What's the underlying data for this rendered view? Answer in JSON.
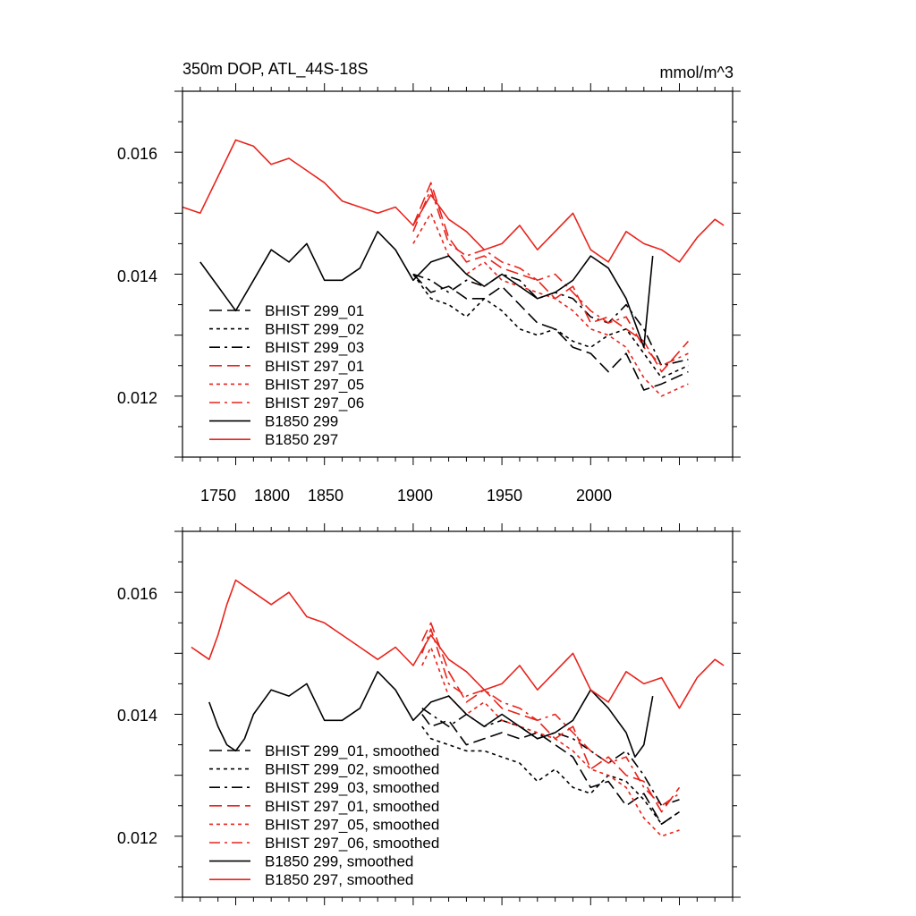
{
  "chart_data": [
    {
      "type": "line",
      "title": "350m DOP, ATL_44S-18S",
      "units": "mmol/m^3",
      "xlim": [
        1720,
        2030
      ],
      "ylim": [
        0.011,
        0.017
      ],
      "x_ticks": [
        "1750",
        "1800",
        "1850",
        "1900",
        "1950",
        "2000"
      ],
      "y_ticks": [
        "0.016",
        "0.014",
        "0.012"
      ],
      "legend": [
        "BHIST 299_01",
        "BHIST 299_02",
        "BHIST 299_03",
        "BHIST 297_01",
        "BHIST 297_05",
        "BHIST 297_06",
        "B1850 299",
        "B1850 297"
      ],
      "series": [
        {
          "name": "BHIST 299_01",
          "color": "#000000",
          "dash": "long",
          "x": [
            1850,
            1860,
            1870,
            1880,
            1890,
            1900,
            1910,
            1920,
            1930,
            1940,
            1950,
            1960,
            1970,
            1980,
            1990,
            2005
          ],
          "values": [
            0.014,
            0.0137,
            0.0138,
            0.0136,
            0.0136,
            0.0138,
            0.0135,
            0.0132,
            0.0131,
            0.0128,
            0.0127,
            0.0124,
            0.0127,
            0.0121,
            0.0122,
            0.0124
          ]
        },
        {
          "name": "BHIST 299_02",
          "color": "#000000",
          "dash": "short",
          "x": [
            1850,
            1860,
            1870,
            1880,
            1890,
            1900,
            1910,
            1920,
            1930,
            1940,
            1950,
            1960,
            1970,
            1980,
            1990,
            2005
          ],
          "values": [
            0.014,
            0.0136,
            0.0135,
            0.0133,
            0.0136,
            0.0134,
            0.0131,
            0.013,
            0.0131,
            0.0129,
            0.0128,
            0.013,
            0.0131,
            0.0127,
            0.0123,
            0.0125
          ]
        },
        {
          "name": "BHIST 299_03",
          "color": "#000000",
          "dash": "dashdot",
          "x": [
            1850,
            1860,
            1870,
            1880,
            1890,
            1900,
            1910,
            1920,
            1930,
            1940,
            1950,
            1960,
            1970,
            1980,
            1990,
            2005
          ],
          "values": [
            0.014,
            0.0139,
            0.0137,
            0.0139,
            0.0138,
            0.014,
            0.0139,
            0.0136,
            0.0137,
            0.0136,
            0.0133,
            0.0132,
            0.0135,
            0.0131,
            0.0125,
            0.0126
          ]
        },
        {
          "name": "BHIST 297_01",
          "color": "#e8231c",
          "dash": "long",
          "x": [
            1850,
            1860,
            1870,
            1880,
            1890,
            1900,
            1910,
            1920,
            1930,
            1940,
            1950,
            1960,
            1970,
            1980,
            1990,
            2005
          ],
          "values": [
            0.0148,
            0.0155,
            0.0146,
            0.0142,
            0.0143,
            0.0141,
            0.014,
            0.0139,
            0.0136,
            0.0138,
            0.0132,
            0.0133,
            0.0131,
            0.0129,
            0.0124,
            0.0129
          ]
        },
        {
          "name": "BHIST 297_05",
          "color": "#e8231c",
          "dash": "short",
          "x": [
            1850,
            1860,
            1870,
            1880,
            1890,
            1900,
            1910,
            1920,
            1930,
            1940,
            1950,
            1960,
            1970,
            1980,
            1990,
            2005
          ],
          "values": [
            0.0145,
            0.015,
            0.0143,
            0.014,
            0.0142,
            0.0139,
            0.0138,
            0.0137,
            0.0136,
            0.0134,
            0.0131,
            0.013,
            0.0128,
            0.0123,
            0.012,
            0.0122
          ]
        },
        {
          "name": "BHIST 297_06",
          "color": "#e8231c",
          "dash": "dashdot",
          "x": [
            1850,
            1860,
            1870,
            1880,
            1890,
            1900,
            1910,
            1920,
            1930,
            1940,
            1950,
            1960,
            1970,
            1980,
            1990,
            2005
          ],
          "values": [
            0.0147,
            0.0154,
            0.0145,
            0.0143,
            0.0144,
            0.0142,
            0.0141,
            0.0139,
            0.014,
            0.0137,
            0.0134,
            0.0132,
            0.0133,
            0.0128,
            0.0125,
            0.0127
          ]
        },
        {
          "name": "B1850 299",
          "color": "#000000",
          "dash": "solid",
          "x": [
            1730,
            1740,
            1750,
            1760,
            1770,
            1780,
            1790,
            1800,
            1810,
            1820,
            1830,
            1840,
            1850,
            1860,
            1870,
            1880,
            1890,
            1900,
            1910,
            1920,
            1930,
            1940,
            1950,
            1960,
            1970,
            1980,
            1985
          ],
          "values": [
            0.0142,
            0.0138,
            0.0134,
            0.0139,
            0.0144,
            0.0142,
            0.0145,
            0.0139,
            0.0139,
            0.0141,
            0.0147,
            0.0144,
            0.0139,
            0.0142,
            0.0143,
            0.014,
            0.0138,
            0.014,
            0.0138,
            0.0136,
            0.0137,
            0.0139,
            0.0143,
            0.0141,
            0.0136,
            0.0128,
            0.0143
          ]
        },
        {
          "name": "B1850 297",
          "color": "#e8231c",
          "dash": "solid",
          "x": [
            1720,
            1730,
            1740,
            1750,
            1760,
            1770,
            1780,
            1790,
            1800,
            1810,
            1820,
            1830,
            1840,
            1850,
            1860,
            1870,
            1880,
            1890,
            1900,
            1910,
            1920,
            1930,
            1940,
            1950,
            1960,
            1970,
            1980,
            1990,
            2000,
            2010,
            2020,
            2025
          ],
          "values": [
            0.0151,
            0.015,
            0.0156,
            0.0162,
            0.0161,
            0.0158,
            0.0159,
            0.0157,
            0.0155,
            0.0152,
            0.0151,
            0.015,
            0.0151,
            0.0148,
            0.0153,
            0.0149,
            0.0147,
            0.0144,
            0.0145,
            0.0148,
            0.0144,
            0.0147,
            0.015,
            0.0144,
            0.0142,
            0.0147,
            0.0145,
            0.0144,
            0.0142,
            0.0146,
            0.0149,
            0.0148
          ]
        }
      ]
    },
    {
      "type": "line",
      "title": "",
      "units": "",
      "xlim": [
        1720,
        2030
      ],
      "ylim": [
        0.011,
        0.017
      ],
      "x_ticks": [
        "1750",
        "1800",
        "1850",
        "1900",
        "1950",
        "2000"
      ],
      "y_ticks": [
        "0.016",
        "0.014",
        "0.012"
      ],
      "legend": [
        "BHIST 299_01, smoothed",
        "BHIST 299_02, smoothed",
        "BHIST 299_03, smoothed",
        "BHIST 297_01, smoothed",
        "BHIST 297_05, smoothed",
        "BHIST 297_06, smoothed",
        "B1850 299, smoothed",
        "B1850 297, smoothed"
      ],
      "series": [
        {
          "name": "BHIST 299_01, smoothed",
          "color": "#000000",
          "dash": "long",
          "x": [
            1855,
            1860,
            1870,
            1880,
            1890,
            1900,
            1910,
            1920,
            1930,
            1940,
            1950,
            1960,
            1970,
            1980,
            1990,
            2000
          ],
          "values": [
            0.014,
            0.0138,
            0.0139,
            0.0135,
            0.0136,
            0.0137,
            0.0136,
            0.0137,
            0.0135,
            0.0133,
            0.0128,
            0.0129,
            0.0125,
            0.0127,
            0.0122,
            0.0124
          ]
        },
        {
          "name": "BHIST 299_02, smoothed",
          "color": "#000000",
          "dash": "short",
          "x": [
            1855,
            1860,
            1870,
            1880,
            1890,
            1900,
            1910,
            1920,
            1930,
            1940,
            1950,
            1960,
            1970,
            1980,
            1990,
            2000
          ],
          "values": [
            0.0138,
            0.0136,
            0.0135,
            0.0134,
            0.0134,
            0.0133,
            0.0132,
            0.0129,
            0.0131,
            0.0128,
            0.0127,
            0.013,
            0.0129,
            0.0126,
            0.0122,
            0.0124
          ]
        },
        {
          "name": "BHIST 299_03, smoothed",
          "color": "#000000",
          "dash": "dashdot",
          "x": [
            1855,
            1860,
            1870,
            1880,
            1890,
            1900,
            1910,
            1920,
            1930,
            1940,
            1950,
            1960,
            1970,
            1980,
            1990,
            2000
          ],
          "values": [
            0.0141,
            0.014,
            0.0138,
            0.014,
            0.0138,
            0.0139,
            0.0138,
            0.0136,
            0.0137,
            0.0136,
            0.0134,
            0.0132,
            0.0134,
            0.013,
            0.0125,
            0.0126
          ]
        },
        {
          "name": "BHIST 297_01, smoothed",
          "color": "#e8231c",
          "dash": "long",
          "x": [
            1855,
            1860,
            1870,
            1880,
            1890,
            1900,
            1910,
            1920,
            1930,
            1940,
            1950,
            1960,
            1970,
            1980,
            1990,
            2000
          ],
          "values": [
            0.0152,
            0.0155,
            0.0147,
            0.0142,
            0.0144,
            0.0141,
            0.014,
            0.0139,
            0.0136,
            0.0138,
            0.0131,
            0.0133,
            0.013,
            0.0129,
            0.0124,
            0.0128
          ]
        },
        {
          "name": "BHIST 297_05, smoothed",
          "color": "#e8231c",
          "dash": "short",
          "x": [
            1855,
            1860,
            1870,
            1880,
            1890,
            1900,
            1910,
            1920,
            1930,
            1940,
            1950,
            1960,
            1970,
            1980,
            1990,
            2000
          ],
          "values": [
            0.0148,
            0.0151,
            0.0143,
            0.014,
            0.0142,
            0.0139,
            0.0138,
            0.0137,
            0.0136,
            0.0134,
            0.0131,
            0.013,
            0.0128,
            0.0123,
            0.012,
            0.0121
          ]
        },
        {
          "name": "BHIST 297_06, smoothed",
          "color": "#e8231c",
          "dash": "dashdot",
          "x": [
            1855,
            1860,
            1870,
            1880,
            1890,
            1900,
            1910,
            1920,
            1930,
            1940,
            1950,
            1960,
            1970,
            1980,
            1990,
            2000
          ],
          "values": [
            0.015,
            0.0154,
            0.0145,
            0.0143,
            0.0144,
            0.0142,
            0.0141,
            0.0139,
            0.014,
            0.0137,
            0.0134,
            0.0132,
            0.0133,
            0.0128,
            0.0125,
            0.0127
          ]
        },
        {
          "name": "B1850 299, smoothed",
          "color": "#000000",
          "dash": "solid",
          "x": [
            1735,
            1740,
            1745,
            1750,
            1755,
            1760,
            1770,
            1780,
            1790,
            1800,
            1810,
            1820,
            1830,
            1840,
            1850,
            1860,
            1870,
            1880,
            1890,
            1900,
            1910,
            1920,
            1930,
            1940,
            1950,
            1960,
            1970,
            1975,
            1980,
            1985
          ],
          "values": [
            0.0142,
            0.0138,
            0.0135,
            0.0134,
            0.0136,
            0.014,
            0.0144,
            0.0143,
            0.0145,
            0.0139,
            0.0139,
            0.0141,
            0.0147,
            0.0144,
            0.0139,
            0.0142,
            0.0143,
            0.014,
            0.0138,
            0.014,
            0.0138,
            0.0136,
            0.0137,
            0.0139,
            0.0144,
            0.0141,
            0.0137,
            0.0133,
            0.0135,
            0.0143
          ]
        },
        {
          "name": "B1850 297, smoothed",
          "color": "#e8231c",
          "dash": "solid",
          "x": [
            1725,
            1730,
            1735,
            1740,
            1745,
            1750,
            1760,
            1770,
            1780,
            1790,
            1800,
            1810,
            1820,
            1830,
            1840,
            1850,
            1860,
            1870,
            1880,
            1890,
            1900,
            1910,
            1920,
            1930,
            1940,
            1950,
            1960,
            1970,
            1980,
            1990,
            2000,
            2010,
            2020,
            2025
          ],
          "values": [
            0.0151,
            0.015,
            0.0149,
            0.0153,
            0.0158,
            0.0162,
            0.016,
            0.0158,
            0.016,
            0.0156,
            0.0155,
            0.0153,
            0.0151,
            0.0149,
            0.0151,
            0.0148,
            0.0153,
            0.0149,
            0.0147,
            0.0144,
            0.0145,
            0.0148,
            0.0144,
            0.0147,
            0.015,
            0.0144,
            0.0142,
            0.0147,
            0.0145,
            0.0146,
            0.0141,
            0.0146,
            0.0149,
            0.0148
          ]
        }
      ]
    }
  ]
}
